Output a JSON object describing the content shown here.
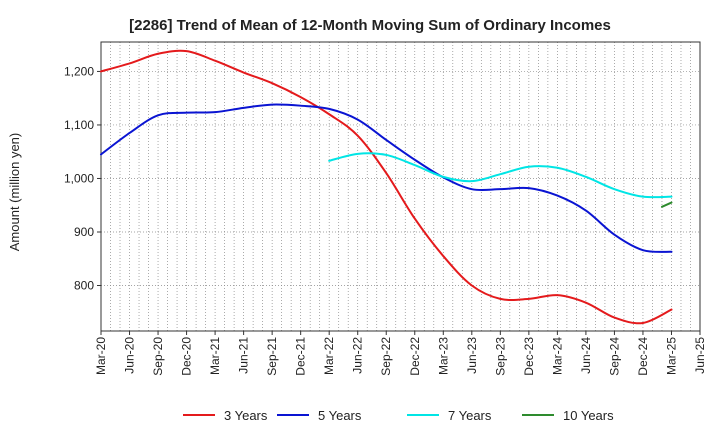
{
  "chart_data": {
    "type": "line",
    "title": "[2286]  Trend of Mean of 12-Month Moving Sum of Ordinary Incomes",
    "xlabel": "",
    "ylabel": "Amount (million yen)",
    "ylim": [
      715,
      1255
    ],
    "y_ticks": [
      800,
      900,
      1000,
      1100,
      1200
    ],
    "y_tick_labels": [
      "800",
      "900",
      "1,000",
      "1,100",
      "1,200"
    ],
    "x_tick_labels": [
      "Mar-20",
      "Jun-20",
      "Sep-20",
      "Dec-20",
      "Mar-21",
      "Jun-21",
      "Sep-21",
      "Dec-21",
      "Mar-22",
      "Jun-22",
      "Sep-22",
      "Dec-22",
      "Mar-23",
      "Jun-23",
      "Sep-23",
      "Dec-23",
      "Mar-24",
      "Jun-24",
      "Sep-24",
      "Dec-24",
      "Mar-25",
      "Jun-25"
    ],
    "x_range_months": [
      0,
      63
    ],
    "grid": true,
    "legend_position": "bottom",
    "series": [
      {
        "name": "3 Years",
        "color": "#e41a1c",
        "x": [
          0,
          3,
          6,
          9,
          12,
          15,
          18,
          21,
          24,
          27,
          30,
          33,
          36,
          39,
          42,
          45,
          48,
          51,
          54,
          57,
          60
        ],
        "values": [
          1200,
          1215,
          1233,
          1238,
          1220,
          1198,
          1178,
          1152,
          1120,
          1080,
          1010,
          925,
          855,
          800,
          775,
          775,
          782,
          768,
          740,
          730,
          755
        ]
      },
      {
        "name": "5 Years",
        "color": "#0a14d2",
        "x": [
          0,
          3,
          6,
          9,
          12,
          15,
          18,
          21,
          24,
          27,
          30,
          33,
          36,
          39,
          42,
          45,
          48,
          51,
          54,
          57,
          60
        ],
        "values": [
          1045,
          1085,
          1118,
          1123,
          1124,
          1132,
          1138,
          1136,
          1130,
          1110,
          1072,
          1035,
          1002,
          980,
          980,
          982,
          968,
          940,
          895,
          866,
          863
        ]
      },
      {
        "name": "7 Years",
        "color": "#00e5e5",
        "x": [
          24,
          27,
          30,
          33,
          36,
          39,
          42,
          45,
          48,
          51,
          54,
          57,
          60
        ],
        "values": [
          1033,
          1046,
          1044,
          1025,
          1003,
          995,
          1008,
          1022,
          1020,
          1003,
          980,
          966,
          966
        ]
      },
      {
        "name": "10 Years",
        "color": "#2e8b2e",
        "x": [
          59,
          60
        ],
        "values": [
          947,
          955
        ]
      }
    ]
  }
}
